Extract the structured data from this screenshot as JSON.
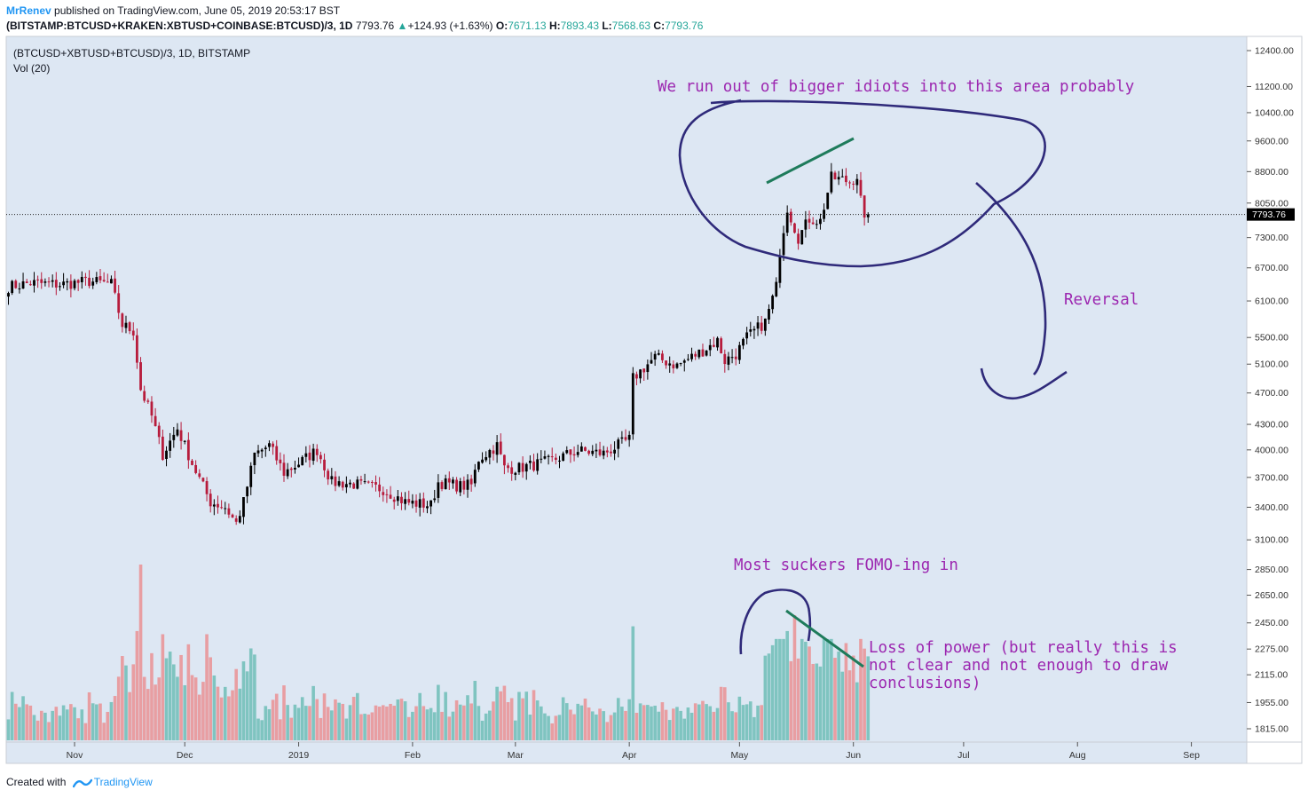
{
  "header": {
    "author": "MrRenev",
    "published": "published on TradingView.com, June 05, 2019 20:53:17 BST",
    "symbol": "(BITSTAMP:BTCUSD+KRAKEN:XBTUSD+COINBASE:BTCUSD)/3, 1D",
    "last": "7793.76",
    "change": "+124.93 (+1.63%)",
    "o_label": "O:",
    "open": "7671.13",
    "h_label": "H:",
    "high": "7893.43",
    "l_label": "L:",
    "low": "7568.63",
    "c_label": "C:",
    "close": "7793.76"
  },
  "legend": {
    "series": "(BTCUSD+XBTUSD+BTCUSD)/3, 1D, BITSTAMP",
    "volume": "Vol (20)"
  },
  "annotations": {
    "top": "We run out of bigger idiots into this area probably",
    "reversal": "Reversal",
    "fomo": "Most suckers FOMO-ing in",
    "loss1": "Loss of power (but really this is",
    "loss2": "not clear and not enough to draw",
    "loss3": "conclusions)"
  },
  "footer": {
    "created": "Created with",
    "brand": "TradingView"
  },
  "colors": {
    "bg": "#dde7f3",
    "up": "#000000",
    "down": "#b71c3c",
    "vol_up": "#7fc4c0",
    "vol_down": "#e89ea2",
    "annot_text": "#9c27b0",
    "annot_circle": "#2f2a7a",
    "trend": "#1e7b5b"
  },
  "chart_data": {
    "type": "candlestick",
    "title": "",
    "xlabel": "",
    "ylabel": "",
    "y_axis_ticks": [
      "12400.00",
      "11200.00",
      "10400.00",
      "9600.00",
      "8800.00",
      "8050.00",
      "7300.00",
      "6700.00",
      "6100.00",
      "5500.00",
      "5100.00",
      "4700.00",
      "4300.00",
      "4000.00",
      "3700.00",
      "3400.00",
      "3100.00",
      "2850.00",
      "2650.00",
      "2450.00",
      "2275.00",
      "2115.00",
      "1955.00",
      "1815.00"
    ],
    "x_axis_ticks": [
      "Nov",
      "Dec",
      "2019",
      "Feb",
      "Mar",
      "Apr",
      "May",
      "Jun",
      "Jul",
      "Aug",
      "Sep"
    ],
    "price_scale": "log",
    "last_price": 7793.76,
    "start_date": "2018-10-14",
    "price_anchors": [
      [
        "2018-10-14",
        6350
      ],
      [
        "2018-10-20",
        6420
      ],
      [
        "2018-10-28",
        6390
      ],
      [
        "2018-11-05",
        6450
      ],
      [
        "2018-11-11",
        6400
      ],
      [
        "2018-11-14",
        5700
      ],
      [
        "2018-11-17",
        5600
      ],
      [
        "2018-11-19",
        4750
      ],
      [
        "2018-11-22",
        4400
      ],
      [
        "2018-11-25",
        3950
      ],
      [
        "2018-11-29",
        4250
      ],
      [
        "2018-12-03",
        3850
      ],
      [
        "2018-12-08",
        3450
      ],
      [
        "2018-12-12",
        3400
      ],
      [
        "2018-12-15",
        3250
      ],
      [
        "2018-12-17",
        3450
      ],
      [
        "2018-12-20",
        3950
      ],
      [
        "2018-12-24",
        4050
      ],
      [
        "2018-12-28",
        3750
      ],
      [
        "2019-01-01",
        3850
      ],
      [
        "2019-01-06",
        4000
      ],
      [
        "2019-01-10",
        3650
      ],
      [
        "2019-01-16",
        3630
      ],
      [
        "2019-01-24",
        3580
      ],
      [
        "2019-01-30",
        3450
      ],
      [
        "2019-02-06",
        3420
      ],
      [
        "2019-02-08",
        3650
      ],
      [
        "2019-02-14",
        3610
      ],
      [
        "2019-02-17",
        3620
      ],
      [
        "2019-02-19",
        3900
      ],
      [
        "2019-02-24",
        4050
      ],
      [
        "2019-02-26",
        3800
      ],
      [
        "2019-03-02",
        3800
      ],
      [
        "2019-03-10",
        3870
      ],
      [
        "2019-03-18",
        3990
      ],
      [
        "2019-03-25",
        3960
      ],
      [
        "2019-04-01",
        4120
      ],
      [
        "2019-04-02",
        4900
      ],
      [
        "2019-04-08",
        5200
      ],
      [
        "2019-04-14",
        5080
      ],
      [
        "2019-04-21",
        5300
      ],
      [
        "2019-04-25",
        5450
      ],
      [
        "2019-04-27",
        5150
      ],
      [
        "2019-04-30",
        5250
      ],
      [
        "2019-05-03",
        5500
      ],
      [
        "2019-05-08",
        5750
      ],
      [
        "2019-05-11",
        6350
      ],
      [
        "2019-05-12",
        7050
      ],
      [
        "2019-05-14",
        7950
      ],
      [
        "2019-05-17",
        7300
      ],
      [
        "2019-05-20",
        7700
      ],
      [
        "2019-05-23",
        7650
      ],
      [
        "2019-05-26",
        8650
      ],
      [
        "2019-05-29",
        8600
      ],
      [
        "2019-05-31",
        8550
      ],
      [
        "2019-06-02",
        8700
      ],
      [
        "2019-06-04",
        7600
      ],
      [
        "2019-06-05",
        7793.76
      ]
    ],
    "volume_spikes": [
      [
        "2018-11-19",
        2870
      ],
      [
        "2018-11-18",
        2450
      ],
      [
        "2018-11-25",
        2430
      ],
      [
        "2018-12-07",
        2430
      ],
      [
        "2019-04-02",
        2480
      ],
      [
        "2019-05-16",
        2550
      ],
      [
        "2019-05-14",
        2450
      ]
    ]
  }
}
